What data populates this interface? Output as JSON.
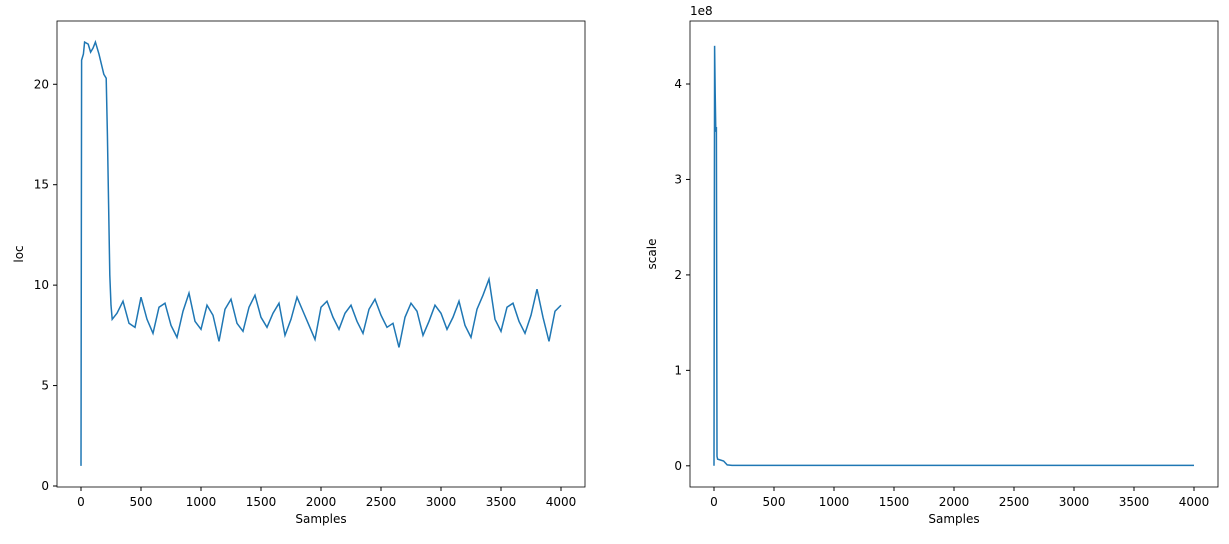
{
  "chart_data": [
    {
      "type": "line",
      "xlabel": "Samples",
      "ylabel": "loc",
      "x": [
        0,
        5,
        20,
        30,
        60,
        80,
        100,
        120,
        150,
        170,
        190,
        210,
        220,
        230,
        240,
        250,
        260,
        300,
        350,
        400,
        450,
        500,
        550,
        600,
        650,
        700,
        750,
        800,
        850,
        900,
        950,
        1000,
        1050,
        1100,
        1150,
        1200,
        1250,
        1300,
        1350,
        1400,
        1450,
        1500,
        1550,
        1600,
        1650,
        1700,
        1750,
        1800,
        1850,
        1900,
        1950,
        2000,
        2050,
        2100,
        2150,
        2200,
        2250,
        2300,
        2350,
        2400,
        2450,
        2500,
        2550,
        2600,
        2650,
        2700,
        2750,
        2800,
        2850,
        2900,
        2950,
        3000,
        3050,
        3100,
        3150,
        3200,
        3250,
        3300,
        3350,
        3400,
        3450,
        3500,
        3550,
        3600,
        3650,
        3700,
        3750,
        3800,
        3850,
        3900,
        3950,
        4000
      ],
      "series": [
        {
          "color": "#1f77b4",
          "values": [
            1,
            21.2,
            21.5,
            22.1,
            22.0,
            21.6,
            21.8,
            22.1,
            21.5,
            21.0,
            20.5,
            20.3,
            17.5,
            14.0,
            10.5,
            9.0,
            8.3,
            8.6,
            9.2,
            8.1,
            7.9,
            9.4,
            8.3,
            7.6,
            8.9,
            9.1,
            8.0,
            7.4,
            8.7,
            9.6,
            8.2,
            7.8,
            9.0,
            8.5,
            7.2,
            8.8,
            9.3,
            8.1,
            7.7,
            8.9,
            9.5,
            8.4,
            7.9,
            8.6,
            9.1,
            7.5,
            8.3,
            9.4,
            8.7,
            8.0,
            7.3,
            8.9,
            9.2,
            8.4,
            7.8,
            8.6,
            9.0,
            8.2,
            7.6,
            8.8,
            9.3,
            8.5,
            7.9,
            8.1,
            6.9,
            8.4,
            9.1,
            8.7,
            7.5,
            8.2,
            9.0,
            8.6,
            7.8,
            8.4,
            9.2,
            8.0,
            7.4,
            8.8,
            9.5,
            10.3,
            8.3,
            7.7,
            8.9,
            9.1,
            8.2,
            7.6,
            8.5,
            9.8,
            8.4,
            7.2,
            8.7,
            9.0
          ]
        }
      ],
      "xlim": [
        -200,
        4200
      ],
      "xticks": [
        0,
        500,
        1000,
        1500,
        2000,
        2500,
        3000,
        3500,
        4000
      ],
      "ylim": [
        -0.05,
        23.15
      ],
      "yticks": [
        0,
        5,
        10,
        15,
        20
      ]
    },
    {
      "type": "line",
      "xlabel": "Samples",
      "ylabel": "scale",
      "y_offset_label": "1e8",
      "x": [
        0,
        5,
        10,
        15,
        20,
        25,
        30,
        80,
        110,
        150,
        4000
      ],
      "series": [
        {
          "color": "#1f77b4",
          "values": [
            0,
            4.4,
            3.9,
            3.5,
            3.55,
            0.1,
            0.07,
            0.05,
            0.01,
            0.005,
            0.005
          ]
        }
      ],
      "xlim": [
        -200,
        4200
      ],
      "xticks": [
        0,
        500,
        1000,
        1500,
        2000,
        2500,
        3000,
        3500,
        4000
      ],
      "ylim": [
        -0.222,
        4.66
      ],
      "yticks": [
        0,
        1,
        2,
        3,
        4
      ]
    }
  ]
}
